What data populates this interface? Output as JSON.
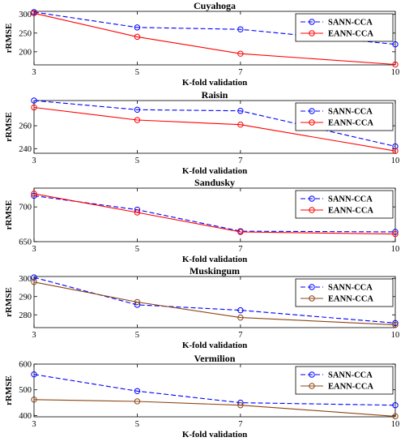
{
  "chart_data": [
    {
      "type": "line",
      "title": "Cuyahoga",
      "xlabel": "K-fold validation",
      "ylabel": "rRMSE",
      "x": [
        3,
        5,
        7,
        10
      ],
      "xlim": [
        3,
        10
      ],
      "ylim": [
        165,
        308
      ],
      "yticks": [
        200,
        250,
        300
      ],
      "legend_position": "top-right",
      "series": [
        {
          "name": "SANN-CCA",
          "values": [
            306,
            265,
            260,
            220
          ],
          "color": "#0000ff",
          "dash": true
        },
        {
          "name": "EANN-CCA",
          "values": [
            303,
            240,
            195,
            166
          ],
          "color": "#ff0000",
          "dash": false
        }
      ]
    },
    {
      "type": "line",
      "title": "Raisin",
      "xlabel": "K-fold validation",
      "ylabel": "rRMSE",
      "x": [
        3,
        5,
        7,
        10
      ],
      "xlim": [
        3,
        10
      ],
      "ylim": [
        236,
        282
      ],
      "yticks": [
        240,
        260
      ],
      "legend_position": "top-right",
      "series": [
        {
          "name": "SANN-CCA",
          "values": [
            282,
            274,
            273,
            242
          ],
          "color": "#0000ff",
          "dash": true
        },
        {
          "name": "EANN-CCA",
          "values": [
            276,
            265,
            261,
            238
          ],
          "color": "#ff0000",
          "dash": false
        }
      ]
    },
    {
      "type": "line",
      "title": "Sandusky",
      "xlabel": "K-fold validation",
      "ylabel": "rRMSE",
      "x": [
        3,
        5,
        7,
        10
      ],
      "xlim": [
        3,
        10
      ],
      "ylim": [
        650,
        727
      ],
      "yticks": [
        650,
        700
      ],
      "legend_position": "top-right",
      "series": [
        {
          "name": "SANN-CCA",
          "values": [
            716,
            696,
            665,
            664
          ],
          "color": "#0000ff",
          "dash": true
        },
        {
          "name": "EANN-CCA",
          "values": [
            719,
            692,
            664,
            661
          ],
          "color": "#ff0000",
          "dash": false
        }
      ]
    },
    {
      "type": "line",
      "title": "Muskingum",
      "xlabel": "K-fold validation",
      "ylabel": "rRMSE",
      "x": [
        3,
        5,
        7,
        10
      ],
      "xlim": [
        3,
        10
      ],
      "ylim": [
        273,
        301
      ],
      "yticks": [
        280,
        290,
        300
      ],
      "legend_position": "top-right",
      "series": [
        {
          "name": "SANN-CCA",
          "values": [
            300.5,
            285.5,
            282.5,
            275.5
          ],
          "color": "#0000ff",
          "dash": true
        },
        {
          "name": "EANN-CCA",
          "values": [
            298,
            287,
            278.5,
            274.5
          ],
          "color": "#8b4513",
          "dash": false
        }
      ]
    },
    {
      "type": "line",
      "title": "Vermilion",
      "xlabel": "K-fold validation",
      "ylabel": "rRMSE",
      "x": [
        3,
        5,
        7,
        10
      ],
      "xlim": [
        3,
        10
      ],
      "ylim": [
        395,
        600
      ],
      "yticks": [
        400,
        500,
        600
      ],
      "legend_position": "top-right",
      "series": [
        {
          "name": "SANN-CCA",
          "values": [
            560,
            495,
            450,
            440
          ],
          "color": "#0000ff",
          "dash": true
        },
        {
          "name": "EANN-CCA",
          "values": [
            462,
            455,
            440,
            397
          ],
          "color": "#8b4513",
          "dash": false
        }
      ]
    }
  ]
}
